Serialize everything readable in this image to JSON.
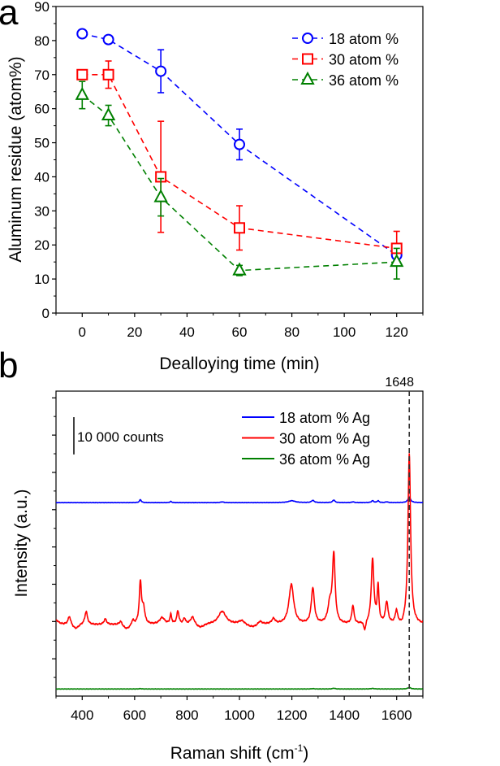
{
  "chart_data": [
    {
      "panel_label": "a",
      "type": "scatter",
      "xlabel": "Dealloying time (min)",
      "ylabel": "Aluminum residue (atom%)",
      "xlim": [
        -10,
        130
      ],
      "ylim": [
        0,
        90
      ],
      "xticks": [
        0,
        20,
        40,
        60,
        80,
        100,
        120
      ],
      "yticks": [
        0,
        10,
        20,
        30,
        40,
        50,
        60,
        70,
        80,
        90
      ],
      "grid": false,
      "legend_position": "top-right",
      "series": [
        {
          "name": "18 atom %",
          "color": "#0000ff",
          "marker": "circle",
          "x": [
            0,
            10,
            30,
            60,
            120
          ],
          "y": [
            82,
            80.3,
            71,
            49.5,
            17
          ],
          "err_low": [
            null,
            null,
            64.7,
            45,
            null
          ],
          "err_high": [
            null,
            null,
            77.3,
            54,
            null
          ]
        },
        {
          "name": "30 atom %",
          "color": "#ff0000",
          "marker": "square",
          "x": [
            0,
            10,
            30,
            60,
            120
          ],
          "y": [
            70,
            70,
            40,
            25,
            19
          ],
          "err_low": [
            null,
            66,
            23.7,
            18.5,
            14
          ],
          "err_high": [
            null,
            74,
            56.3,
            31.5,
            24
          ]
        },
        {
          "name": "36 atom %",
          "color": "#008000",
          "marker": "triangle",
          "x": [
            0,
            10,
            30,
            60,
            120
          ],
          "y": [
            64,
            58,
            34,
            12.5,
            15
          ],
          "err_low": [
            60,
            55,
            28.5,
            11,
            10
          ],
          "err_high": [
            68,
            61,
            39.5,
            14,
            19
          ]
        }
      ]
    },
    {
      "panel_label": "b",
      "type": "line",
      "xlabel": "Raman shift (cm",
      "xlabel_sup": "-1",
      "xlabel_end": ")",
      "ylabel": "Intensity (a.u.)",
      "xlim": [
        300,
        1700
      ],
      "ylim": [
        0,
        81800
      ],
      "xticks": [
        400,
        600,
        800,
        1000,
        1200,
        1400,
        1600
      ],
      "ytick_step": 10000,
      "grid": false,
      "legend_position": "top-right",
      "scale_bar": {
        "label": "10 000 counts",
        "value": 10000
      },
      "marker_line": {
        "x": 1648,
        "label": "1648"
      },
      "series": [
        {
          "name": "18 atom % Ag",
          "color": "#0000ff",
          "offset": 51900,
          "peaks": [
            [
              622,
              800,
              4
            ],
            [
              738,
              300,
              4
            ],
            [
              934,
              200,
              6
            ],
            [
              1200,
              500,
              15
            ],
            [
              1280,
              600,
              6
            ],
            [
              1360,
              700,
              5
            ],
            [
              1433,
              200,
              5
            ],
            [
              1508,
              500,
              5
            ],
            [
              1529,
              500,
              4
            ],
            [
              1562,
              200,
              5
            ],
            [
              1648,
              1500,
              6
            ]
          ],
          "dips": []
        },
        {
          "name": "30 atom % Ag",
          "color": "#ff0000",
          "offset": 19130,
          "peaks": [
            [
              300,
              1200,
              12
            ],
            [
              351,
              2200,
              6
            ],
            [
              415,
              3500,
              6
            ],
            [
              488,
              1500,
              6
            ],
            [
              547,
              1000,
              6
            ],
            [
              593,
              1200,
              5
            ],
            [
              622,
              11300,
              5
            ],
            [
              634,
              4000,
              6
            ],
            [
              705,
              1800,
              12
            ],
            [
              738,
              2500,
              4
            ],
            [
              765,
              3500,
              5
            ],
            [
              790,
              1500,
              5
            ],
            [
              821,
              2000,
              9
            ],
            [
              934,
              3500,
              18
            ],
            [
              1009,
              1000,
              14
            ],
            [
              1078,
              1000,
              10
            ],
            [
              1130,
              1400,
              8
            ],
            [
              1198,
              10700,
              11
            ],
            [
              1280,
              9600,
              7
            ],
            [
              1345,
              5000,
              9
            ],
            [
              1360,
              18400,
              6
            ],
            [
              1433,
              4900,
              5
            ],
            [
              1508,
              17400,
              6
            ],
            [
              1529,
              9800,
              4
            ],
            [
              1562,
              5800,
              6
            ],
            [
              1599,
              3300,
              5
            ],
            [
              1648,
              45800,
              6
            ]
          ],
          "dips": [
            [
              375,
              1100,
              15
            ],
            [
              570,
              1200,
              18
            ],
            [
              850,
              900,
              20
            ],
            [
              1050,
              800,
              30
            ],
            [
              1478,
              2100,
              6
            ],
            [
              1620,
              800,
              10
            ]
          ]
        },
        {
          "name": "36 atom % Ag",
          "color": "#008000",
          "offset": 1900,
          "peaks": [
            [
              622,
              100,
              5
            ],
            [
              1280,
              100,
              6
            ],
            [
              1360,
              200,
              6
            ],
            [
              1508,
              150,
              8
            ],
            [
              1648,
              400,
              7
            ]
          ],
          "dips": []
        }
      ]
    }
  ]
}
